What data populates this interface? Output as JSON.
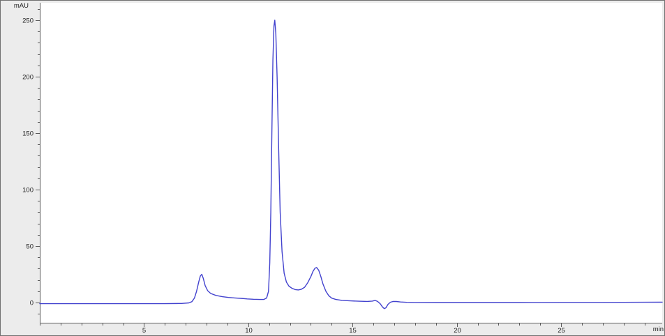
{
  "window": {
    "description": "chromatogram signal view"
  },
  "chart_data": {
    "type": "line",
    "title": "",
    "x_axis": {
      "label": "min",
      "min": 0,
      "max": 29.85,
      "major_ticks": [
        5,
        10,
        15,
        20,
        25
      ],
      "minor_step": 1
    },
    "y_axis": {
      "label": "mAU",
      "min": -17.9,
      "max": 265.4,
      "major_ticks": [
        0,
        50,
        100,
        150,
        200,
        250
      ],
      "minor_step": 10
    },
    "grid": false,
    "legend": false,
    "colors": {
      "trace": "#4242ce",
      "axis": "#5a5a5a",
      "tick": "#5a5a5a",
      "tick_label": "#1d1d1d",
      "plot_background": "#ffffff",
      "frame_background": "#ececec",
      "frame_border": "#6f6f6f"
    },
    "peaks": [
      {
        "time_min": 7.8,
        "height_mAU": 25
      },
      {
        "time_min": 11.3,
        "height_mAU": 250
      },
      {
        "time_min": 13.3,
        "height_mAU": 31
      },
      {
        "time_min": 16.6,
        "height_mAU": -5.5
      }
    ],
    "series": [
      {
        "name": "detector-signal",
        "color": "#4242ce",
        "points": [
          [
            0,
            -1
          ],
          [
            1,
            -1
          ],
          [
            2,
            -1
          ],
          [
            3,
            -1
          ],
          [
            4,
            -1
          ],
          [
            5,
            -1
          ],
          [
            6,
            -1
          ],
          [
            6.8,
            -0.8
          ],
          [
            7.15,
            -0.3
          ],
          [
            7.3,
            0.8
          ],
          [
            7.42,
            4
          ],
          [
            7.52,
            10
          ],
          [
            7.62,
            18
          ],
          [
            7.7,
            23.5
          ],
          [
            7.77,
            25
          ],
          [
            7.84,
            21.5
          ],
          [
            7.93,
            15
          ],
          [
            8.05,
            10.5
          ],
          [
            8.2,
            8
          ],
          [
            8.45,
            6.3
          ],
          [
            8.75,
            5.2
          ],
          [
            9.05,
            4.5
          ],
          [
            9.35,
            4.1
          ],
          [
            9.65,
            3.7
          ],
          [
            9.95,
            3.2
          ],
          [
            10.25,
            2.9
          ],
          [
            10.55,
            2.7
          ],
          [
            10.75,
            2.8
          ],
          [
            10.88,
            4
          ],
          [
            10.97,
            10
          ],
          [
            11.03,
            35
          ],
          [
            11.08,
            80
          ],
          [
            11.13,
            150
          ],
          [
            11.18,
            215
          ],
          [
            11.23,
            245
          ],
          [
            11.27,
            250
          ],
          [
            11.32,
            238
          ],
          [
            11.38,
            200
          ],
          [
            11.45,
            140
          ],
          [
            11.53,
            80
          ],
          [
            11.62,
            45
          ],
          [
            11.72,
            26
          ],
          [
            11.83,
            18
          ],
          [
            11.95,
            14.5
          ],
          [
            12.1,
            12.5
          ],
          [
            12.25,
            11.5
          ],
          [
            12.4,
            11.2
          ],
          [
            12.55,
            11.8
          ],
          [
            12.7,
            13.5
          ],
          [
            12.85,
            17.5
          ],
          [
            13.0,
            23
          ],
          [
            13.1,
            27.5
          ],
          [
            13.2,
            30.5
          ],
          [
            13.28,
            31
          ],
          [
            13.38,
            28.5
          ],
          [
            13.48,
            23
          ],
          [
            13.58,
            16.5
          ],
          [
            13.72,
            10
          ],
          [
            13.86,
            6
          ],
          [
            14.0,
            3.9
          ],
          [
            14.2,
            2.7
          ],
          [
            14.5,
            1.9
          ],
          [
            14.9,
            1.5
          ],
          [
            15.3,
            1.2
          ],
          [
            15.7,
            1.0
          ],
          [
            15.95,
            1.3
          ],
          [
            16.08,
            1.9
          ],
          [
            16.2,
            1.0
          ],
          [
            16.33,
            -1.2
          ],
          [
            16.43,
            -3.8
          ],
          [
            16.52,
            -5.4
          ],
          [
            16.6,
            -4.6
          ],
          [
            16.7,
            -1.6
          ],
          [
            16.82,
            0.3
          ],
          [
            16.95,
            1.0
          ],
          [
            17.1,
            0.9
          ],
          [
            17.3,
            0.5
          ],
          [
            17.6,
            0.2
          ],
          [
            18.0,
            0.05
          ],
          [
            19,
            0
          ],
          [
            20,
            0
          ],
          [
            21,
            0
          ],
          [
            22,
            0
          ],
          [
            23,
            0
          ],
          [
            24,
            0.05
          ],
          [
            25,
            0.1
          ],
          [
            26,
            0.1
          ],
          [
            27,
            0.15
          ],
          [
            28,
            0.2
          ],
          [
            29,
            0.25
          ],
          [
            29.85,
            0.3
          ]
        ]
      }
    ]
  }
}
